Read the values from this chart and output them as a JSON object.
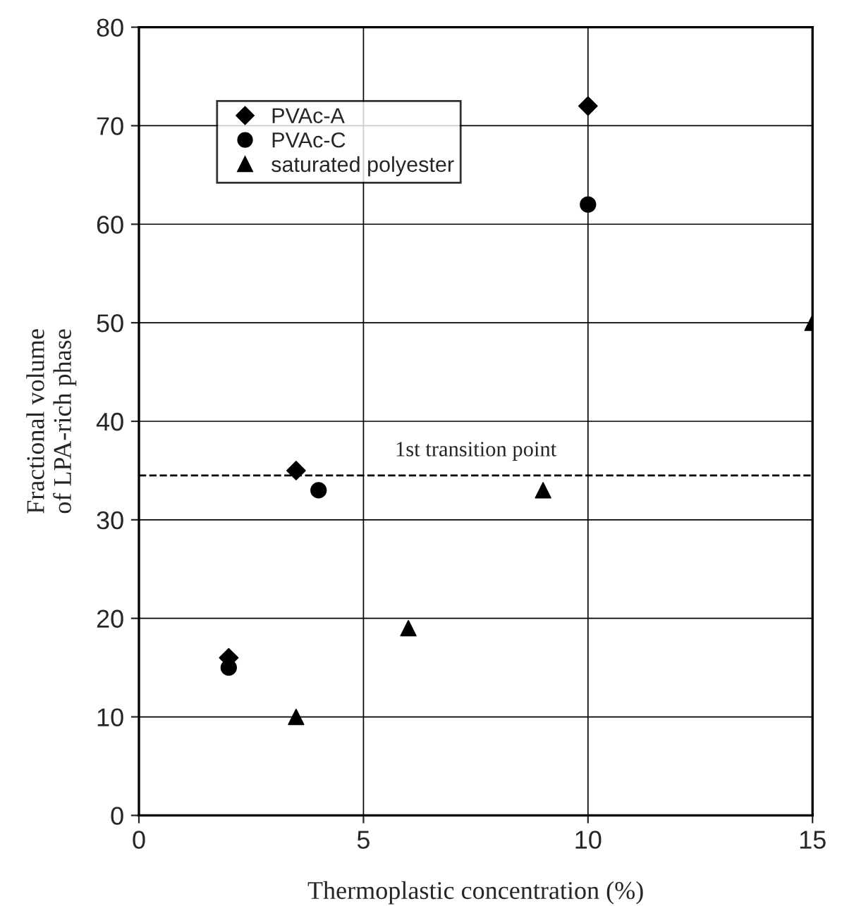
{
  "chart_data": {
    "type": "scatter",
    "xlabel": "Thermoplastic concentration (%)",
    "ylabel": "Fractional volume\nof LPA-rich phase",
    "xlim": [
      0,
      15
    ],
    "xticks": [
      0,
      5,
      10,
      15
    ],
    "ylim": [
      0,
      80
    ],
    "yticks": [
      0,
      10,
      20,
      30,
      40,
      50,
      60,
      70,
      80
    ],
    "grid": true,
    "legend": "top left",
    "series": [
      {
        "name": "PVAc-A",
        "color": "#000000",
        "marker": "diamond",
        "x": [
          2,
          3.5,
          10
        ],
        "values": [
          16,
          35,
          72
        ]
      },
      {
        "name": "PVAc-C",
        "color": "#000000",
        "marker": "circle",
        "x": [
          2,
          4,
          10
        ],
        "values": [
          15,
          33,
          62
        ]
      },
      {
        "name": "saturated polyester",
        "color": "#000000",
        "marker": "triangle",
        "x": [
          3.5,
          6,
          9,
          15
        ],
        "values": [
          10,
          19,
          33,
          50
        ]
      }
    ],
    "ref_lines": [
      {
        "axis": "y",
        "value": 34.5,
        "label": "1st transition point",
        "color": "#000000",
        "line_style": "dashed"
      }
    ]
  }
}
